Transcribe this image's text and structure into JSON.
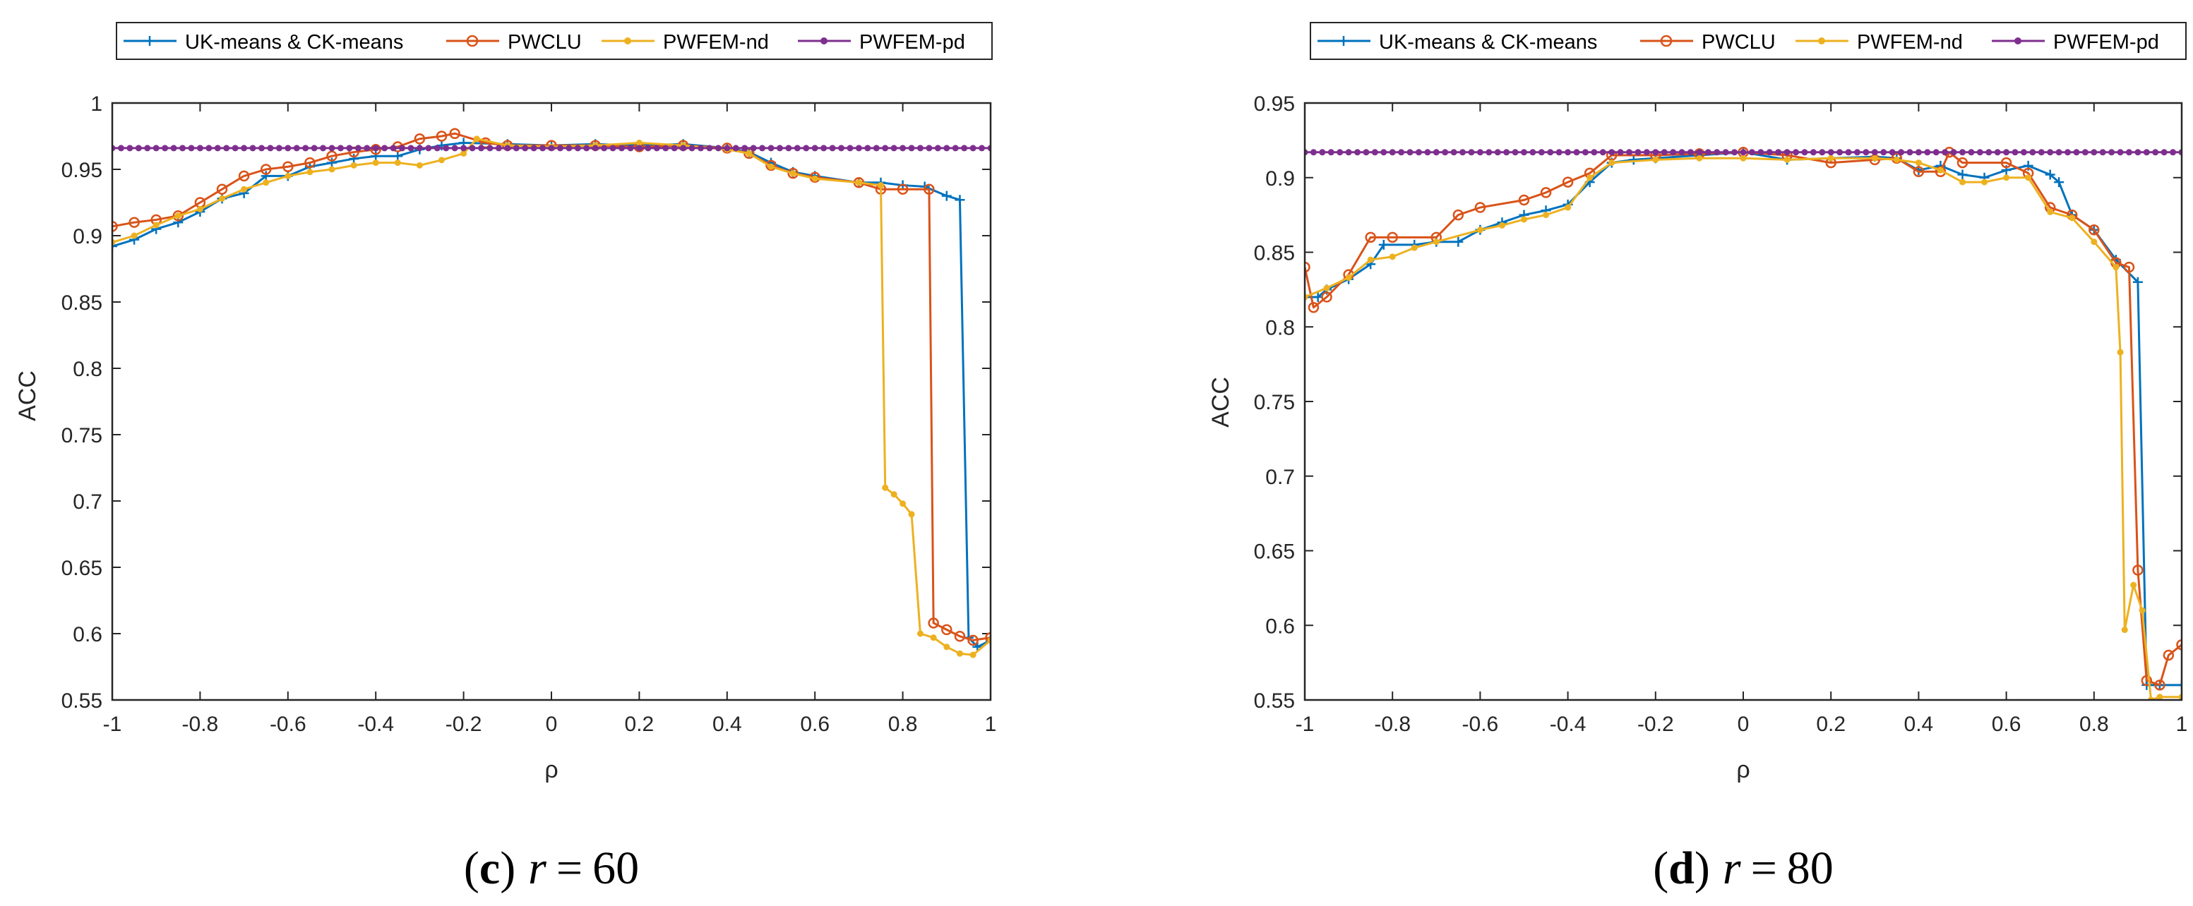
{
  "colors": {
    "uk": "#0072BD",
    "pwclu": "#D95319",
    "nd": "#EDB120",
    "pd": "#7E2F8E",
    "axis": "#262626"
  },
  "chart_data": [
    {
      "type": "line",
      "caption": {
        "letter": "c",
        "open": "(",
        "close": ")",
        "var": "r",
        "eq": "=",
        "value": "60"
      },
      "xlabel": "ρ",
      "ylabel": "ACC",
      "xlim": [
        -1,
        1
      ],
      "ylim": [
        0.55,
        1
      ],
      "xticks": [
        -1,
        -0.8,
        -0.6,
        -0.4,
        -0.2,
        0,
        0.2,
        0.4,
        0.6,
        0.8,
        1
      ],
      "xtick_labels": [
        "-1",
        "-0.8",
        "-0.6",
        "-0.4",
        "-0.2",
        "0",
        "0.2",
        "0.4",
        "0.6",
        "0.8",
        "1"
      ],
      "yticks": [
        0.55,
        0.6,
        0.65,
        0.7,
        0.75,
        0.8,
        0.85,
        0.9,
        0.95,
        1
      ],
      "ytick_labels": [
        "0.55",
        "0.6",
        "0.65",
        "0.7",
        "0.75",
        "0.8",
        "0.85",
        "0.9",
        "0.95",
        "1"
      ],
      "legend": [
        "UK-means & CK-means",
        "PWCLU",
        "PWFEM-nd",
        "PWFEM-pd"
      ],
      "series": [
        {
          "name": "UK-means & CK-means",
          "color_key": "uk",
          "marker": "plus",
          "points": [
            [
              -1,
              0.892
            ],
            [
              -0.95,
              0.897
            ],
            [
              -0.9,
              0.905
            ],
            [
              -0.85,
              0.91
            ],
            [
              -0.8,
              0.918
            ],
            [
              -0.75,
              0.928
            ],
            [
              -0.7,
              0.932
            ],
            [
              -0.65,
              0.945
            ],
            [
              -0.6,
              0.945
            ],
            [
              -0.55,
              0.952
            ],
            [
              -0.5,
              0.955
            ],
            [
              -0.45,
              0.958
            ],
            [
              -0.4,
              0.96
            ],
            [
              -0.35,
              0.96
            ],
            [
              -0.3,
              0.965
            ],
            [
              -0.25,
              0.968
            ],
            [
              -0.2,
              0.97
            ],
            [
              -0.1,
              0.969
            ],
            [
              0,
              0.968
            ],
            [
              0.1,
              0.969
            ],
            [
              0.2,
              0.968
            ],
            [
              0.3,
              0.969
            ],
            [
              0.4,
              0.966
            ],
            [
              0.45,
              0.963
            ],
            [
              0.5,
              0.955
            ],
            [
              0.55,
              0.948
            ],
            [
              0.6,
              0.945
            ],
            [
              0.7,
              0.94
            ],
            [
              0.75,
              0.94
            ],
            [
              0.8,
              0.938
            ],
            [
              0.85,
              0.937
            ],
            [
              0.9,
              0.93
            ],
            [
              0.93,
              0.927
            ],
            [
              0.95,
              0.597
            ],
            [
              0.97,
              0.59
            ],
            [
              1,
              0.595
            ]
          ]
        },
        {
          "name": "PWCLU",
          "color_key": "pwclu",
          "marker": "circle",
          "points": [
            [
              -1,
              0.907
            ],
            [
              -0.95,
              0.91
            ],
            [
              -0.9,
              0.912
            ],
            [
              -0.85,
              0.915
            ],
            [
              -0.8,
              0.925
            ],
            [
              -0.75,
              0.935
            ],
            [
              -0.7,
              0.945
            ],
            [
              -0.65,
              0.95
            ],
            [
              -0.6,
              0.952
            ],
            [
              -0.55,
              0.955
            ],
            [
              -0.5,
              0.96
            ],
            [
              -0.45,
              0.963
            ],
            [
              -0.4,
              0.965
            ],
            [
              -0.35,
              0.967
            ],
            [
              -0.3,
              0.973
            ],
            [
              -0.25,
              0.975
            ],
            [
              -0.22,
              0.977
            ],
            [
              -0.15,
              0.97
            ],
            [
              -0.1,
              0.968
            ],
            [
              0,
              0.968
            ],
            [
              0.1,
              0.968
            ],
            [
              0.2,
              0.967
            ],
            [
              0.3,
              0.968
            ],
            [
              0.4,
              0.966
            ],
            [
              0.45,
              0.962
            ],
            [
              0.5,
              0.953
            ],
            [
              0.55,
              0.947
            ],
            [
              0.6,
              0.944
            ],
            [
              0.7,
              0.94
            ],
            [
              0.75,
              0.935
            ],
            [
              0.8,
              0.935
            ],
            [
              0.86,
              0.935
            ],
            [
              0.87,
              0.608
            ],
            [
              0.9,
              0.603
            ],
            [
              0.93,
              0.598
            ],
            [
              0.96,
              0.595
            ],
            [
              1,
              0.597
            ]
          ]
        },
        {
          "name": "PWFEM-nd",
          "color_key": "nd",
          "marker": "dot",
          "points": [
            [
              -1,
              0.895
            ],
            [
              -0.95,
              0.9
            ],
            [
              -0.9,
              0.908
            ],
            [
              -0.85,
              0.915
            ],
            [
              -0.8,
              0.92
            ],
            [
              -0.75,
              0.928
            ],
            [
              -0.7,
              0.935
            ],
            [
              -0.65,
              0.94
            ],
            [
              -0.6,
              0.945
            ],
            [
              -0.55,
              0.948
            ],
            [
              -0.5,
              0.95
            ],
            [
              -0.45,
              0.953
            ],
            [
              -0.4,
              0.955
            ],
            [
              -0.35,
              0.955
            ],
            [
              -0.3,
              0.953
            ],
            [
              -0.25,
              0.957
            ],
            [
              -0.2,
              0.962
            ],
            [
              -0.17,
              0.973
            ],
            [
              -0.1,
              0.968
            ],
            [
              0,
              0.967
            ],
            [
              0.1,
              0.968
            ],
            [
              0.2,
              0.97
            ],
            [
              0.3,
              0.968
            ],
            [
              0.4,
              0.965
            ],
            [
              0.45,
              0.962
            ],
            [
              0.5,
              0.952
            ],
            [
              0.55,
              0.947
            ],
            [
              0.6,
              0.943
            ],
            [
              0.7,
              0.94
            ],
            [
              0.75,
              0.938
            ],
            [
              0.76,
              0.71
            ],
            [
              0.78,
              0.705
            ],
            [
              0.8,
              0.698
            ],
            [
              0.82,
              0.69
            ],
            [
              0.84,
              0.6
            ],
            [
              0.87,
              0.597
            ],
            [
              0.9,
              0.59
            ],
            [
              0.93,
              0.585
            ],
            [
              0.96,
              0.584
            ],
            [
              1,
              0.595
            ]
          ]
        },
        {
          "name": "PWFEM-pd",
          "color_key": "pd",
          "marker": "dot",
          "points": [
            [
              -1,
              0.966
            ],
            [
              1,
              0.966
            ]
          ]
        }
      ]
    },
    {
      "type": "line",
      "caption": {
        "letter": "d",
        "open": "(",
        "close": ")",
        "var": "r",
        "eq": "=",
        "value": "80"
      },
      "xlabel": "ρ",
      "ylabel": "ACC",
      "xlim": [
        -1,
        1
      ],
      "ylim": [
        0.55,
        0.95
      ],
      "xticks": [
        -1,
        -0.8,
        -0.6,
        -0.4,
        -0.2,
        0,
        0.2,
        0.4,
        0.6,
        0.8,
        1
      ],
      "xtick_labels": [
        "-1",
        "-0.8",
        "-0.6",
        "-0.4",
        "-0.2",
        "0",
        "0.2",
        "0.4",
        "0.6",
        "0.8",
        "1"
      ],
      "yticks": [
        0.55,
        0.6,
        0.65,
        0.7,
        0.75,
        0.8,
        0.85,
        0.9,
        0.95
      ],
      "ytick_labels": [
        "0.55",
        "0.6",
        "0.65",
        "0.7",
        "0.75",
        "0.8",
        "0.85",
        "0.9",
        "0.95"
      ],
      "legend": [
        "UK-means & CK-means",
        "PWCLU",
        "PWFEM-nd",
        "PWFEM-pd"
      ],
      "series": [
        {
          "name": "UK-means & CK-means",
          "color_key": "uk",
          "marker": "plus",
          "points": [
            [
              -1,
              0.82
            ],
            [
              -0.97,
              0.82
            ],
            [
              -0.95,
              0.825
            ],
            [
              -0.9,
              0.832
            ],
            [
              -0.85,
              0.842
            ],
            [
              -0.82,
              0.855
            ],
            [
              -0.75,
              0.855
            ],
            [
              -0.7,
              0.857
            ],
            [
              -0.65,
              0.857
            ],
            [
              -0.6,
              0.865
            ],
            [
              -0.55,
              0.87
            ],
            [
              -0.5,
              0.875
            ],
            [
              -0.45,
              0.878
            ],
            [
              -0.4,
              0.882
            ],
            [
              -0.35,
              0.897
            ],
            [
              -0.3,
              0.91
            ],
            [
              -0.25,
              0.912
            ],
            [
              -0.2,
              0.913
            ],
            [
              -0.1,
              0.915
            ],
            [
              0,
              0.917
            ],
            [
              0.1,
              0.912
            ],
            [
              0.2,
              0.913
            ],
            [
              0.3,
              0.914
            ],
            [
              0.35,
              0.913
            ],
            [
              0.4,
              0.905
            ],
            [
              0.45,
              0.908
            ],
            [
              0.5,
              0.902
            ],
            [
              0.55,
              0.9
            ],
            [
              0.6,
              0.905
            ],
            [
              0.65,
              0.908
            ],
            [
              0.7,
              0.902
            ],
            [
              0.72,
              0.897
            ],
            [
              0.75,
              0.875
            ],
            [
              0.8,
              0.865
            ],
            [
              0.85,
              0.845
            ],
            [
              0.9,
              0.83
            ],
            [
              0.92,
              0.56
            ],
            [
              0.95,
              0.56
            ],
            [
              1,
              0.56
            ]
          ]
        },
        {
          "name": "PWCLU",
          "color_key": "pwclu",
          "marker": "circle",
          "points": [
            [
              -1,
              0.84
            ],
            [
              -0.98,
              0.813
            ],
            [
              -0.95,
              0.82
            ],
            [
              -0.9,
              0.835
            ],
            [
              -0.85,
              0.86
            ],
            [
              -0.8,
              0.86
            ],
            [
              -0.7,
              0.86
            ],
            [
              -0.65,
              0.875
            ],
            [
              -0.6,
              0.88
            ],
            [
              -0.5,
              0.885
            ],
            [
              -0.45,
              0.89
            ],
            [
              -0.4,
              0.897
            ],
            [
              -0.35,
              0.903
            ],
            [
              -0.3,
              0.915
            ],
            [
              -0.2,
              0.915
            ],
            [
              -0.1,
              0.916
            ],
            [
              0,
              0.917
            ],
            [
              0.1,
              0.915
            ],
            [
              0.2,
              0.91
            ],
            [
              0.3,
              0.912
            ],
            [
              0.35,
              0.913
            ],
            [
              0.4,
              0.904
            ],
            [
              0.45,
              0.904
            ],
            [
              0.47,
              0.917
            ],
            [
              0.5,
              0.91
            ],
            [
              0.6,
              0.91
            ],
            [
              0.65,
              0.903
            ],
            [
              0.7,
              0.88
            ],
            [
              0.75,
              0.875
            ],
            [
              0.8,
              0.865
            ],
            [
              0.85,
              0.843
            ],
            [
              0.88,
              0.84
            ],
            [
              0.9,
              0.637
            ],
            [
              0.92,
              0.563
            ],
            [
              0.95,
              0.56
            ],
            [
              0.97,
              0.58
            ],
            [
              1,
              0.587
            ]
          ]
        },
        {
          "name": "PWFEM-nd",
          "color_key": "nd",
          "marker": "dot",
          "points": [
            [
              -1,
              0.82
            ],
            [
              -0.95,
              0.826
            ],
            [
              -0.9,
              0.833
            ],
            [
              -0.85,
              0.845
            ],
            [
              -0.8,
              0.847
            ],
            [
              -0.75,
              0.853
            ],
            [
              -0.7,
              0.857
            ],
            [
              -0.6,
              0.865
            ],
            [
              -0.55,
              0.868
            ],
            [
              -0.5,
              0.872
            ],
            [
              -0.45,
              0.875
            ],
            [
              -0.4,
              0.88
            ],
            [
              -0.35,
              0.9
            ],
            [
              -0.3,
              0.91
            ],
            [
              -0.2,
              0.912
            ],
            [
              -0.1,
              0.913
            ],
            [
              0,
              0.913
            ],
            [
              0.1,
              0.912
            ],
            [
              0.2,
              0.913
            ],
            [
              0.3,
              0.913
            ],
            [
              0.35,
              0.912
            ],
            [
              0.4,
              0.91
            ],
            [
              0.45,
              0.905
            ],
            [
              0.5,
              0.897
            ],
            [
              0.55,
              0.897
            ],
            [
              0.6,
              0.9
            ],
            [
              0.65,
              0.9
            ],
            [
              0.7,
              0.877
            ],
            [
              0.75,
              0.873
            ],
            [
              0.8,
              0.857
            ],
            [
              0.85,
              0.84
            ],
            [
              0.86,
              0.783
            ],
            [
              0.87,
              0.597
            ],
            [
              0.89,
              0.627
            ],
            [
              0.91,
              0.61
            ],
            [
              0.93,
              0.55
            ],
            [
              0.95,
              0.552
            ],
            [
              1,
              0.552
            ]
          ]
        },
        {
          "name": "PWFEM-pd",
          "color_key": "pd",
          "marker": "dot",
          "points": [
            [
              -1,
              0.917
            ],
            [
              1,
              0.917
            ]
          ]
        }
      ]
    }
  ]
}
